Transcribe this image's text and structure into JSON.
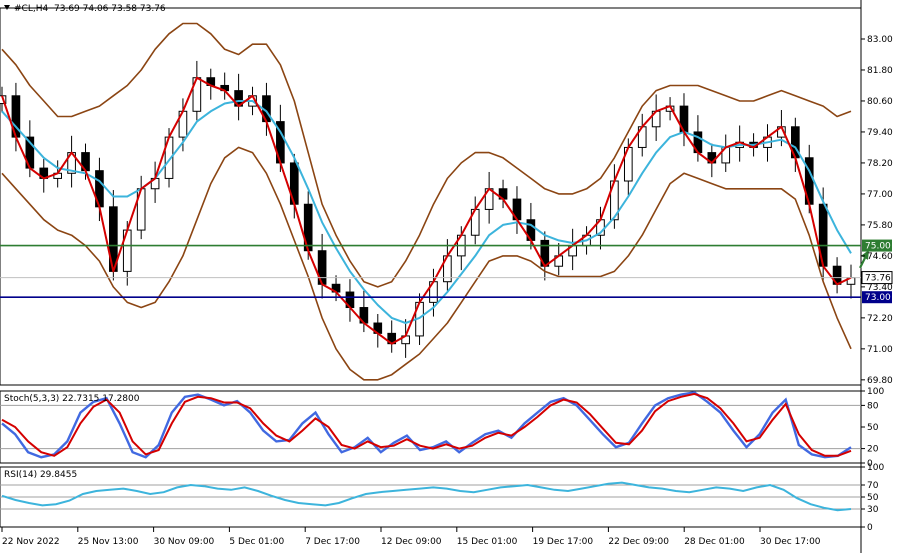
{
  "header": {
    "symbol": "#CL,H4",
    "ohlc": "73.69 74.06 73.58 73.76"
  },
  "colors": {
    "price_line": "#d40000",
    "ma_line": "#3cb4dc",
    "bands": "#8b4513",
    "candles": "#000000",
    "support_line": "#00008b",
    "resistance_line": "#2e7d32",
    "stoch_main": "#4169e1",
    "stoch_signal": "#d40000",
    "rsi_line": "#3cb4dc",
    "arrow": "#2e7d32"
  },
  "chart_data": [
    {
      "type": "line",
      "panel": "main",
      "title": "",
      "y_range": [
        69.6,
        84.2
      ],
      "y_ticks": [
        "83.00",
        "81.80",
        "80.60",
        "79.40",
        "78.20",
        "77.00",
        "75.80",
        "74.60",
        "73.40",
        "72.20",
        "71.00",
        "69.80"
      ],
      "y_tick_values": [
        83.0,
        81.8,
        80.6,
        79.4,
        78.2,
        77.0,
        75.8,
        74.6,
        73.4,
        72.2,
        71.0,
        69.8
      ],
      "x_ticks": [
        "22 Nov 2022",
        "25 Nov 13:00",
        "30 Nov 09:00",
        "5 Dec 01:00",
        "7 Dec 17:00",
        "12 Dec 09:00",
        "15 Dec 01:00",
        "19 Dec 17:00",
        "22 Dec 09:00",
        "28 Dec 01:00",
        "30 Dec 17:00"
      ],
      "horizontal_lines": [
        {
          "name": "resistance",
          "value": 75.0,
          "label": "75.00"
        },
        {
          "name": "support",
          "value": 73.0,
          "label": "73.00"
        }
      ],
      "current_price": {
        "value": 73.76,
        "label": "73.76"
      },
      "series": [
        {
          "role": "close",
          "values": [
            80.8,
            79.2,
            78.0,
            77.6,
            77.8,
            78.6,
            77.9,
            76.5,
            74.0,
            75.6,
            77.2,
            77.6,
            79.2,
            80.2,
            81.5,
            81.2,
            81.0,
            80.4,
            80.8,
            79.8,
            78.2,
            76.6,
            74.8,
            73.5,
            73.2,
            72.6,
            72.0,
            71.6,
            71.2,
            71.5,
            72.8,
            73.6,
            74.6,
            75.4,
            76.4,
            77.2,
            76.8,
            76.0,
            75.2,
            74.2,
            74.6,
            75.0,
            75.4,
            76.0,
            77.5,
            78.8,
            79.6,
            80.2,
            80.4,
            79.4,
            78.6,
            78.2,
            78.8,
            79.0,
            78.8,
            79.2,
            79.6,
            78.4,
            76.6,
            74.2,
            73.5,
            73.76
          ]
        },
        {
          "role": "ma",
          "values": [
            80.2,
            79.6,
            79.0,
            78.4,
            78.0,
            77.9,
            77.8,
            77.5,
            76.9,
            76.9,
            77.2,
            77.6,
            78.3,
            79.0,
            79.8,
            80.2,
            80.5,
            80.6,
            80.6,
            80.2,
            79.4,
            78.4,
            77.2,
            75.9,
            74.9,
            74.0,
            73.3,
            72.7,
            72.2,
            72.0,
            72.2,
            72.6,
            73.2,
            73.9,
            74.6,
            75.4,
            75.8,
            75.9,
            75.8,
            75.4,
            75.2,
            75.1,
            75.2,
            75.5,
            76.1,
            76.9,
            77.8,
            78.6,
            79.2,
            79.4,
            79.2,
            78.9,
            78.8,
            78.9,
            78.9,
            79.0,
            79.1,
            78.8,
            77.9,
            76.7,
            75.6,
            74.7
          ]
        },
        {
          "role": "band_upper",
          "values": [
            82.6,
            82.0,
            81.2,
            80.6,
            80.0,
            80.0,
            80.2,
            80.4,
            80.8,
            81.2,
            81.8,
            82.6,
            83.2,
            83.6,
            83.6,
            83.2,
            82.6,
            82.4,
            82.8,
            82.8,
            82.0,
            80.6,
            78.6,
            76.6,
            75.4,
            74.4,
            73.6,
            73.4,
            73.6,
            74.4,
            75.4,
            76.6,
            77.6,
            78.2,
            78.6,
            78.6,
            78.4,
            78.0,
            77.6,
            77.2,
            77.0,
            77.0,
            77.2,
            77.6,
            78.4,
            79.4,
            80.4,
            81.0,
            81.2,
            81.2,
            81.2,
            81.0,
            80.8,
            80.6,
            80.6,
            80.8,
            81.0,
            80.8,
            80.6,
            80.4,
            80.0,
            80.2
          ]
        },
        {
          "role": "band_lower",
          "values": [
            77.8,
            77.2,
            76.6,
            76.0,
            75.6,
            75.4,
            75.0,
            74.4,
            73.4,
            72.8,
            72.6,
            72.8,
            73.6,
            74.6,
            76.0,
            77.4,
            78.4,
            78.8,
            78.6,
            77.8,
            76.6,
            75.2,
            73.8,
            72.2,
            71.0,
            70.2,
            69.8,
            69.8,
            70.0,
            70.4,
            70.8,
            71.4,
            72.0,
            72.8,
            73.6,
            74.4,
            74.6,
            74.6,
            74.4,
            74.0,
            73.8,
            73.8,
            73.8,
            73.8,
            74.0,
            74.6,
            75.4,
            76.4,
            77.4,
            77.8,
            77.6,
            77.4,
            77.2,
            77.2,
            77.2,
            77.2,
            77.2,
            76.8,
            75.4,
            73.6,
            72.2,
            71.0
          ]
        }
      ],
      "annotations": [
        {
          "type": "arrow",
          "direction": "up",
          "near_index": 61
        }
      ]
    },
    {
      "type": "line",
      "panel": "stochastic",
      "title": "Stoch(5,3,3) 22.7315 17.2800",
      "y_range": [
        0,
        100
      ],
      "y_ticks": [
        "100",
        "80",
        "50",
        "20",
        "0"
      ],
      "y_tick_values": [
        100,
        80,
        50,
        20,
        0
      ],
      "levels": [
        80,
        20
      ],
      "series": [
        {
          "role": "main",
          "values": [
            55,
            40,
            15,
            8,
            12,
            30,
            70,
            85,
            90,
            55,
            15,
            8,
            25,
            70,
            92,
            95,
            88,
            80,
            86,
            70,
            45,
            30,
            32,
            55,
            70,
            40,
            15,
            22,
            35,
            15,
            28,
            38,
            18,
            22,
            30,
            15,
            28,
            40,
            45,
            35,
            55,
            70,
            85,
            90,
            80,
            60,
            40,
            22,
            28,
            55,
            80,
            90,
            95,
            98,
            85,
            70,
            45,
            22,
            40,
            70,
            88,
            25,
            12,
            8,
            10,
            22
          ]
        },
        {
          "role": "signal",
          "values": [
            60,
            50,
            30,
            15,
            10,
            22,
            55,
            78,
            88,
            70,
            30,
            12,
            18,
            55,
            85,
            92,
            90,
            84,
            84,
            76,
            55,
            38,
            30,
            45,
            62,
            50,
            25,
            20,
            30,
            22,
            24,
            33,
            24,
            20,
            26,
            20,
            24,
            35,
            42,
            38,
            50,
            64,
            80,
            88,
            84,
            68,
            48,
            28,
            26,
            45,
            72,
            86,
            92,
            96,
            90,
            76,
            55,
            30,
            35,
            60,
            82,
            40,
            18,
            10,
            10,
            17
          ]
        }
      ]
    },
    {
      "type": "line",
      "panel": "rsi",
      "title": "RSI(14) 29.8455",
      "y_range": [
        0,
        100
      ],
      "y_ticks": [
        "100",
        "70",
        "50",
        "30",
        "0"
      ],
      "y_tick_values": [
        100,
        70,
        50,
        30,
        0
      ],
      "levels": [
        70,
        50,
        30
      ],
      "series": [
        {
          "role": "rsi",
          "values": [
            52,
            45,
            40,
            36,
            38,
            44,
            55,
            60,
            62,
            64,
            60,
            55,
            58,
            66,
            70,
            68,
            64,
            62,
            66,
            60,
            52,
            45,
            40,
            38,
            36,
            40,
            48,
            55,
            58,
            60,
            62,
            64,
            66,
            64,
            60,
            58,
            62,
            66,
            68,
            70,
            66,
            62,
            60,
            64,
            68,
            72,
            74,
            70,
            66,
            64,
            60,
            58,
            62,
            66,
            64,
            60,
            66,
            70,
            62,
            48,
            38,
            32,
            28,
            30
          ]
        }
      ]
    }
  ]
}
